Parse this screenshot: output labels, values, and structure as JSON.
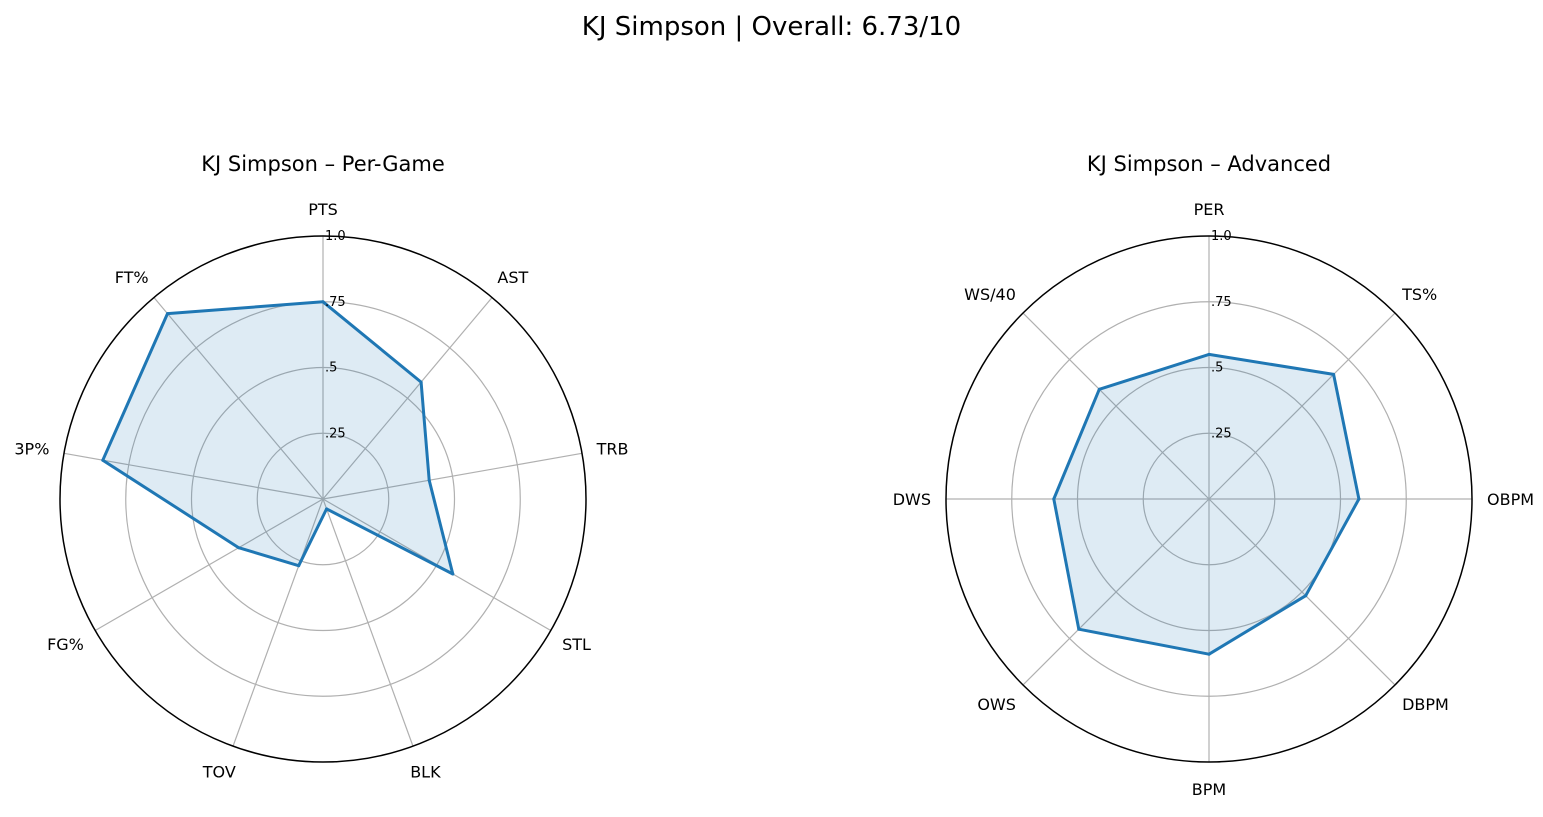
{
  "figure": {
    "title": "KJ Simpson | Overall: 6.73/10"
  },
  "colors": {
    "line": "#1f77b4",
    "fill": "#1f77b4",
    "grid": "#b0b0b0",
    "frame": "#000000"
  },
  "chart_data": [
    {
      "type": "radar",
      "title": "KJ Simpson – Per-Game",
      "categories": [
        "PTS",
        "AST",
        "TRB",
        "STL",
        "BLK",
        "TOV",
        "FG%",
        "3P%",
        "FT%"
      ],
      "values": [
        0.75,
        0.58,
        0.41,
        0.57,
        0.04,
        0.27,
        0.37,
        0.85,
        0.92
      ],
      "rlim": [
        0,
        1
      ],
      "rticks": [
        0.25,
        0.5,
        0.75,
        1.0
      ],
      "rtick_labels": [
        ".25",
        ".5",
        ".75",
        "1.0"
      ],
      "grid": true
    },
    {
      "type": "radar",
      "title": "KJ Simpson – Advanced",
      "categories": [
        "PER",
        "TS%",
        "OBPM",
        "DBPM",
        "BPM",
        "OWS",
        "DWS",
        "WS/40"
      ],
      "values": [
        0.55,
        0.67,
        0.57,
        0.52,
        0.59,
        0.7,
        0.59,
        0.59
      ],
      "rlim": [
        0,
        1
      ],
      "rticks": [
        0.25,
        0.5,
        0.75,
        1.0
      ],
      "rtick_labels": [
        ".25",
        ".5",
        ".75",
        "1.0"
      ],
      "grid": true
    }
  ]
}
